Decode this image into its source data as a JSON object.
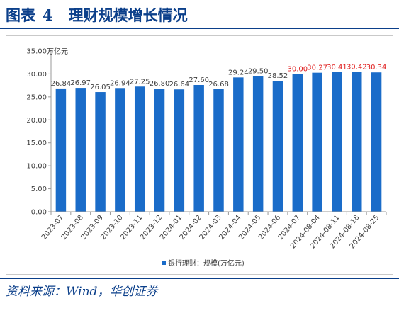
{
  "figure": {
    "title": "图表",
    "number": "4",
    "caption": "理财规模增长情况",
    "source": "资料来源：Wind，华创证券"
  },
  "chart_data": {
    "type": "bar",
    "categories": [
      "2023-07",
      "2023-08",
      "2023-09",
      "2023-10",
      "2023-11",
      "2023-12",
      "2024-01",
      "2024-02",
      "2024-03",
      "2024-04",
      "2024-05",
      "2024-06",
      "2024-07",
      "2024-08-04",
      "2024-08-11",
      "2024-08-18",
      "2024-08-25"
    ],
    "series": [
      {
        "name": "银行理财：规模(万亿元)",
        "values": [
          26.84,
          26.97,
          26.05,
          26.94,
          27.25,
          26.8,
          26.64,
          27.6,
          26.68,
          29.24,
          29.5,
          28.52,
          30.0,
          30.27,
          30.41,
          30.42,
          30.34
        ],
        "labels": [
          "26.84",
          "26.97",
          "26.05",
          "26.94",
          "27.25",
          "26.80",
          "26.64",
          "27.60",
          "26.68",
          "29.24",
          "29.50",
          "28.52",
          "30.00",
          "30.27",
          "30.41",
          "30.42",
          "30.34"
        ],
        "highlighted_labels_from_index": 12
      }
    ],
    "unit": "万亿元",
    "ylim": [
      0,
      35
    ],
    "yticks": [
      "0.00",
      "5.00",
      "10.00",
      "15.00",
      "20.00",
      "25.00",
      "30.00",
      "35.00"
    ],
    "grid": false,
    "legend": "bottom-center",
    "colors": {
      "bar": "#1a6cc9",
      "label": "#404040",
      "highlight_label": "#e02020",
      "axis": "#9a9a9a"
    }
  }
}
